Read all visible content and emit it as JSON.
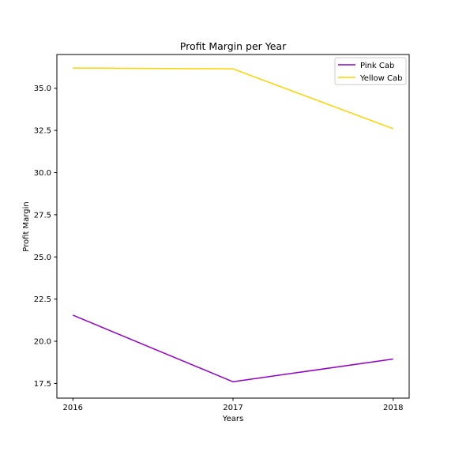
{
  "chart_data": {
    "type": "line",
    "title": "Profit Margin per Year",
    "xlabel": "Years",
    "ylabel": "Profit Margin",
    "x": [
      2016,
      2017,
      2018
    ],
    "x_tick_labels": [
      "2016",
      "2017",
      "2018"
    ],
    "y_ticks": [
      17.5,
      20.0,
      22.5,
      25.0,
      27.5,
      30.0,
      32.5,
      35.0
    ],
    "y_tick_labels": [
      "17.5",
      "20.0",
      "22.5",
      "25.0",
      "27.5",
      "30.0",
      "32.5",
      "35.0"
    ],
    "xlim": [
      2015.9,
      2018.1
    ],
    "ylim": [
      16.63,
      37.0
    ],
    "grid": false,
    "legend_position": "top-right",
    "series": [
      {
        "name": "Pink Cab",
        "color": "#9400c8",
        "values": [
          21.55,
          17.6,
          18.95
        ]
      },
      {
        "name": "Yellow Cab",
        "color": "#ffd200",
        "values": [
          36.2,
          36.15,
          32.6
        ]
      }
    ]
  }
}
